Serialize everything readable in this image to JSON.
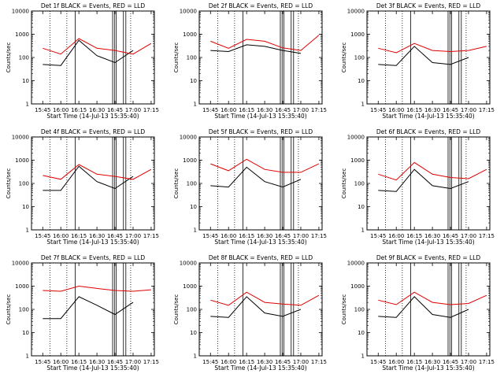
{
  "figure": {
    "x_ticks": [
      "15:45",
      "16:00",
      "16:15",
      "16:30",
      "16:45",
      "17:00",
      "17:15"
    ],
    "y_ticks": [
      "1",
      "10",
      "100",
      "1000",
      "10000"
    ],
    "xlabel": "Start Time (14-Jul-13 15:35:40)",
    "ylabel": "Counts/sec"
  },
  "chart_data": [
    {
      "type": "line",
      "title": "Det 1f BLACK = Events, RED = LLD",
      "xlabel": "Start Time (14-Jul-13 15:35:40)",
      "ylabel": "Counts/sec",
      "yscale": "log",
      "ylim": [
        1,
        10000
      ],
      "x": [
        "15:45",
        "16:00",
        "16:15",
        "16:30",
        "16:45",
        "17:00",
        "17:15"
      ],
      "series": [
        {
          "color": "#000000",
          "values": [
            50,
            45,
            550,
            120,
            60,
            200,
            null
          ]
        },
        {
          "color": "#e00000",
          "values": [
            250,
            140,
            650,
            250,
            200,
            140,
            400
          ]
        }
      ]
    },
    {
      "type": "line",
      "title": "Det 2f BLACK = Events, RED = LLD",
      "xlabel": "Start Time (14-Jul-13 15:35:40)",
      "ylabel": "Counts/sec",
      "yscale": "log",
      "ylim": [
        1,
        10000
      ],
      "x": [
        "15:45",
        "16:00",
        "16:15",
        "16:30",
        "16:45",
        "17:00",
        "17:15"
      ],
      "series": [
        {
          "color": "#000000",
          "values": [
            200,
            180,
            350,
            300,
            200,
            150,
            null
          ]
        },
        {
          "color": "#e00000",
          "values": [
            500,
            250,
            600,
            500,
            260,
            200,
            900
          ]
        }
      ]
    },
    {
      "type": "line",
      "title": "Det 3f BLACK = Events, RED = LLD",
      "xlabel": "Start Time (14-Jul-13 15:35:40)",
      "ylabel": "Counts/sec",
      "yscale": "log",
      "ylim": [
        1,
        10000
      ],
      "x": [
        "15:45",
        "16:00",
        "16:15",
        "16:30",
        "16:45",
        "17:00",
        "17:15"
      ],
      "series": [
        {
          "color": "#000000",
          "values": [
            50,
            45,
            300,
            60,
            50,
            100,
            null
          ]
        },
        {
          "color": "#e00000",
          "values": [
            250,
            160,
            400,
            200,
            180,
            200,
            300
          ]
        }
      ]
    },
    {
      "type": "line",
      "title": "Det 4f BLACK = Events, RED = LLD",
      "xlabel": "Start Time (14-Jul-13 15:35:40)",
      "ylabel": "Counts/sec",
      "yscale": "log",
      "ylim": [
        1,
        10000
      ],
      "x": [
        "15:45",
        "16:00",
        "16:15",
        "16:30",
        "16:45",
        "17:00",
        "17:15"
      ],
      "series": [
        {
          "color": "#000000",
          "values": [
            50,
            50,
            550,
            120,
            60,
            200,
            null
          ]
        },
        {
          "color": "#e00000",
          "values": [
            220,
            150,
            650,
            250,
            200,
            150,
            400
          ]
        }
      ]
    },
    {
      "type": "line",
      "title": "Det 5f BLACK = Events, RED = LLD",
      "xlabel": "Start Time (14-Jul-13 15:35:40)",
      "ylabel": "Counts/sec",
      "yscale": "log",
      "ylim": [
        1,
        10000
      ],
      "x": [
        "15:45",
        "16:00",
        "16:15",
        "16:30",
        "16:45",
        "17:00",
        "17:15"
      ],
      "series": [
        {
          "color": "#000000",
          "values": [
            80,
            70,
            500,
            120,
            70,
            150,
            null
          ]
        },
        {
          "color": "#e00000",
          "values": [
            700,
            350,
            1100,
            400,
            300,
            300,
            700
          ]
        }
      ]
    },
    {
      "type": "line",
      "title": "Det 6f BLACK = Events, RED = LLD",
      "xlabel": "Start Time (14-Jul-13 15:35:40)",
      "ylabel": "Counts/sec",
      "yscale": "log",
      "ylim": [
        1,
        10000
      ],
      "x": [
        "15:45",
        "16:00",
        "16:15",
        "16:30",
        "16:45",
        "17:00",
        "17:15"
      ],
      "series": [
        {
          "color": "#000000",
          "values": [
            50,
            45,
            400,
            80,
            60,
            120,
            null
          ]
        },
        {
          "color": "#e00000",
          "values": [
            250,
            140,
            800,
            250,
            180,
            160,
            400
          ]
        }
      ]
    },
    {
      "type": "line",
      "title": "Det 7f BLACK = Events, RED = LLD",
      "xlabel": "Start Time (14-Jul-13 15:35:40)",
      "ylabel": "Counts/sec",
      "yscale": "log",
      "ylim": [
        1,
        10000
      ],
      "x": [
        "15:45",
        "16:00",
        "16:15",
        "16:30",
        "16:45",
        "17:00",
        "17:15"
      ],
      "series": [
        {
          "color": "#000000",
          "values": [
            40,
            40,
            350,
            150,
            60,
            200,
            null
          ]
        },
        {
          "color": "#e00000",
          "values": [
            650,
            600,
            1000,
            800,
            650,
            600,
            700
          ]
        }
      ]
    },
    {
      "type": "line",
      "title": "Det 8f BLACK = Events, RED = LLD",
      "xlabel": "Start Time (14-Jul-13 15:35:40)",
      "ylabel": "Counts/sec",
      "yscale": "log",
      "ylim": [
        1,
        10000
      ],
      "x": [
        "15:45",
        "16:00",
        "16:15",
        "16:30",
        "16:45",
        "17:00",
        "17:15"
      ],
      "series": [
        {
          "color": "#000000",
          "values": [
            50,
            45,
            350,
            70,
            50,
            100,
            null
          ]
        },
        {
          "color": "#e00000",
          "values": [
            250,
            150,
            550,
            200,
            170,
            150,
            400
          ]
        }
      ]
    },
    {
      "type": "line",
      "title": "Det 9f BLACK = Events, RED = LLD",
      "xlabel": "Start Time (14-Jul-13 15:35:40)",
      "ylabel": "Counts/sec",
      "yscale": "log",
      "ylim": [
        1,
        10000
      ],
      "x": [
        "15:45",
        "16:00",
        "16:15",
        "16:30",
        "16:45",
        "17:00",
        "17:15"
      ],
      "series": [
        {
          "color": "#000000",
          "values": [
            50,
            45,
            350,
            60,
            45,
            100,
            null
          ]
        },
        {
          "color": "#e00000",
          "values": [
            250,
            160,
            550,
            200,
            160,
            180,
            400
          ]
        }
      ]
    }
  ]
}
